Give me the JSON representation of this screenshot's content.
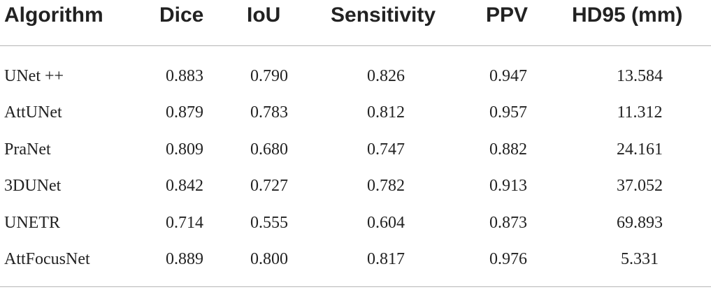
{
  "table": {
    "headers": [
      "Algorithm",
      "Dice",
      "IoU",
      "Sensitivity",
      "PPV",
      "HD95 (mm)"
    ],
    "rows": [
      [
        "UNet ++",
        "0.883",
        "0.790",
        "0.826",
        "0.947",
        "13.584"
      ],
      [
        "AttUNet",
        "0.879",
        "0.783",
        "0.812",
        "0.957",
        "11.312"
      ],
      [
        "PraNet",
        "0.809",
        "0.680",
        "0.747",
        "0.882",
        "24.161"
      ],
      [
        "3DUNet",
        "0.842",
        "0.727",
        "0.782",
        "0.913",
        "37.052"
      ],
      [
        "UNETR",
        "0.714",
        "0.555",
        "0.604",
        "0.873",
        "69.893"
      ],
      [
        "AttFocusNet",
        "0.889",
        "0.800",
        "0.817",
        "0.976",
        "5.331"
      ]
    ]
  }
}
